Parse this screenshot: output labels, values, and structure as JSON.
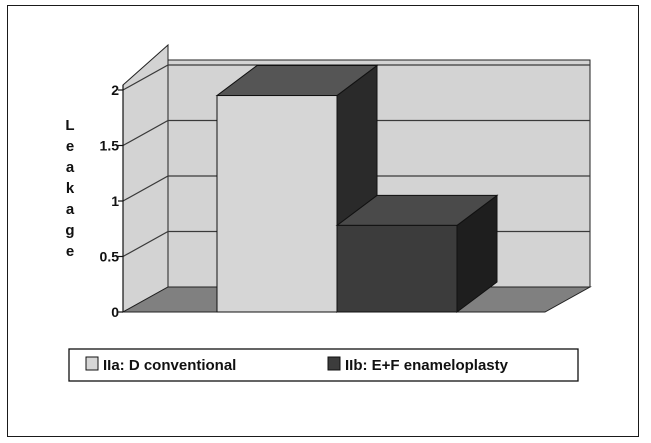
{
  "chart_data": {
    "type": "bar",
    "title": "",
    "xlabel": "",
    "ylabel": "Leakage",
    "ylim": [
      0,
      2
    ],
    "yticks": [
      "0",
      "0.5",
      "1",
      "1.5",
      "2"
    ],
    "grid": true,
    "legend_position": "bottom",
    "series": [
      {
        "name": "IIa: D conventional",
        "value": 1.95,
        "color": "#d6d6d6"
      },
      {
        "name": "IIb: E+F enameloplasty",
        "value": 0.78,
        "color": "#3c3c3c"
      }
    ]
  },
  "colors": {
    "wall": "#d3d3d3",
    "floor": "#808080",
    "grid": "#3a3a3a",
    "bar_top_dark": "#4a4a4a",
    "bar_side_dark": "#1e1e1e",
    "bar_side_light": "#2a2a2a",
    "bar_top_light": "#555555"
  }
}
